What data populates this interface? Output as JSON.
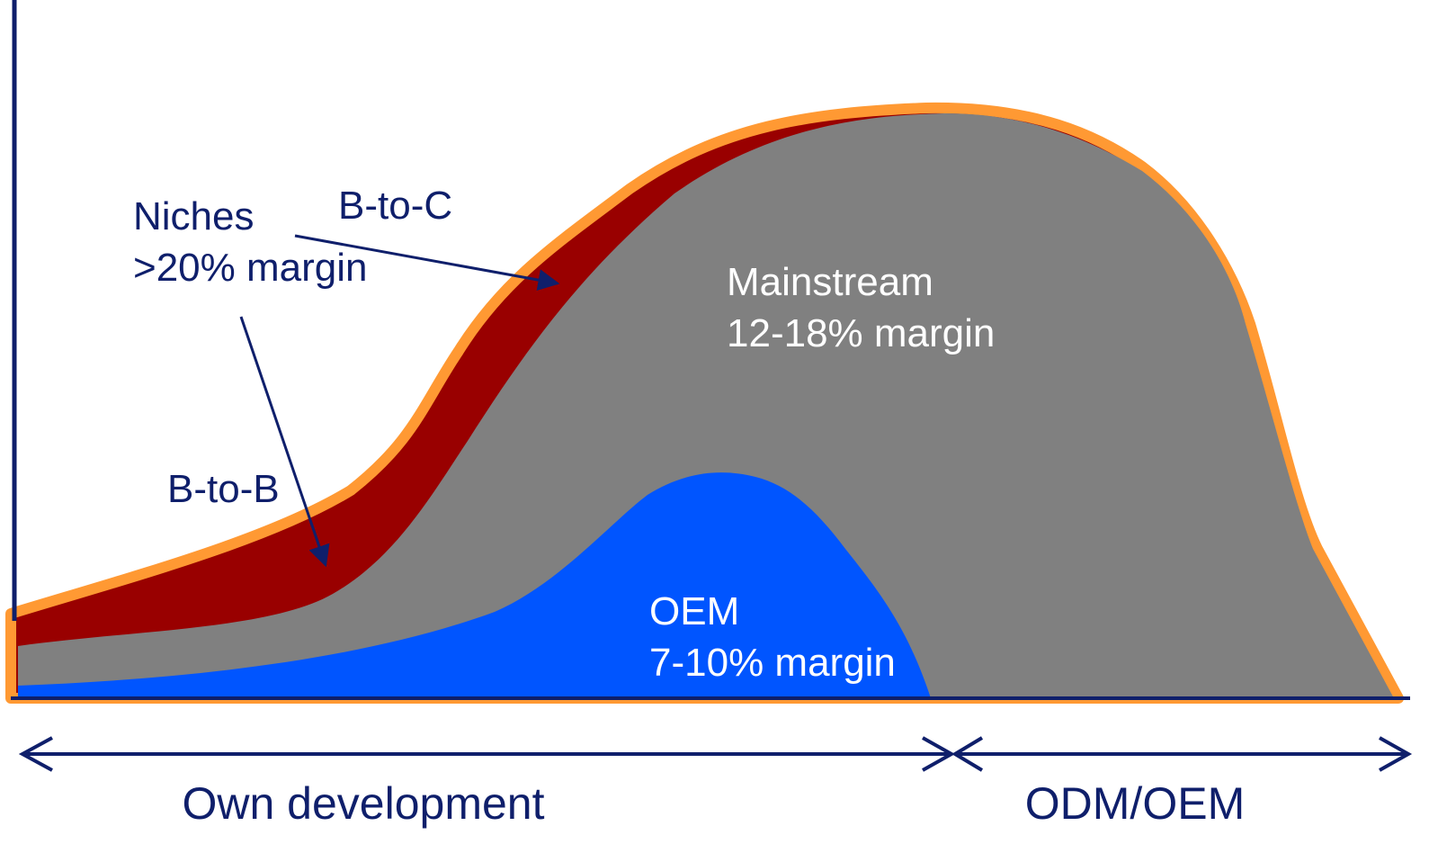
{
  "segments": {
    "niches": {
      "title": "Niches",
      "margin": ">20% margin"
    },
    "b_to_c": "B-to-C",
    "b_to_b": "B-to-B",
    "mainstream": {
      "title": "Mainstream",
      "margin": "12-18% margin"
    },
    "oem": {
      "title": "OEM",
      "margin": "7-10% margin"
    }
  },
  "phases": [
    "Own development",
    "ODM/OEM"
  ]
}
